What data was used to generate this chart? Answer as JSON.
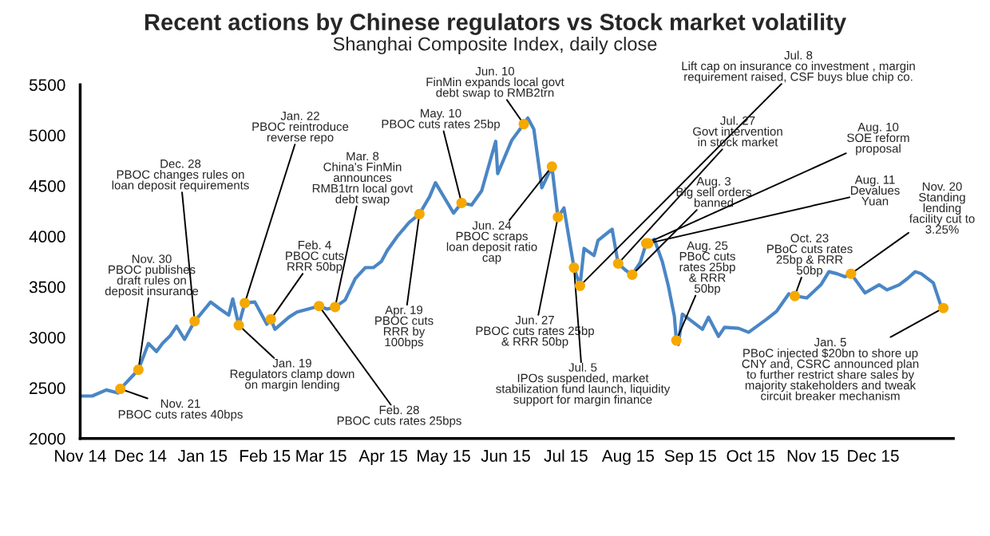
{
  "chart_data": {
    "type": "line",
    "title": "Recent actions by Chinese regulators vs Stock market volatility",
    "subtitle": "Shanghai Composite Index, daily close",
    "x": [
      "2014-11-01",
      "2014-11-07",
      "2014-11-14",
      "2014-11-20",
      "2014-11-21",
      "2014-11-30",
      "2014-12-05",
      "2014-12-09",
      "2014-12-12",
      "2014-12-16",
      "2014-12-19",
      "2014-12-23",
      "2014-12-28",
      "2014-12-31",
      "2015-01-05",
      "2015-01-09",
      "2015-01-14",
      "2015-01-16",
      "2015-01-19",
      "2015-01-22",
      "2015-01-27",
      "2015-02-02",
      "2015-02-04",
      "2015-02-06",
      "2015-02-13",
      "2015-02-17",
      "2015-02-28",
      "2015-03-04",
      "2015-03-08",
      "2015-03-13",
      "2015-03-18",
      "2015-03-23",
      "2015-03-27",
      "2015-03-31",
      "2015-04-03",
      "2015-04-08",
      "2015-04-14",
      "2015-04-19",
      "2015-04-24",
      "2015-04-27",
      "2015-05-06",
      "2015-05-10",
      "2015-05-15",
      "2015-05-20",
      "2015-05-27",
      "2015-05-28",
      "2015-06-04",
      "2015-06-10",
      "2015-06-12",
      "2015-06-15",
      "2015-06-19",
      "2015-06-24",
      "2015-06-27",
      "2015-06-30",
      "2015-07-05",
      "2015-07-08",
      "2015-07-10",
      "2015-07-15",
      "2015-07-17",
      "2015-07-24",
      "2015-07-27",
      "2015-07-31",
      "2015-08-03",
      "2015-08-07",
      "2015-08-10",
      "2015-08-11",
      "2015-08-14",
      "2015-08-18",
      "2015-08-21",
      "2015-08-24",
      "2015-08-25",
      "2015-08-26",
      "2015-08-28",
      "2015-09-01",
      "2015-09-07",
      "2015-09-10",
      "2015-09-15",
      "2015-09-18",
      "2015-09-25",
      "2015-09-30",
      "2015-10-09",
      "2015-10-14",
      "2015-10-20",
      "2015-10-23",
      "2015-10-29",
      "2015-11-05",
      "2015-11-09",
      "2015-11-13",
      "2015-11-17",
      "2015-11-20",
      "2015-11-27",
      "2015-12-04",
      "2015-12-08",
      "2015-12-14",
      "2015-12-18",
      "2015-12-22",
      "2015-12-25",
      "2015-12-31",
      "2016-01-04",
      "2016-01-05"
    ],
    "series": [
      {
        "color": "#4a86c5",
        "values": [
          2420,
          2420,
          2480,
          2450,
          2490,
          2680,
          2940,
          2860,
          2940,
          3020,
          3110,
          2980,
          3160,
          3230,
          3350,
          3290,
          3220,
          3380,
          3120,
          3340,
          3350,
          3130,
          3180,
          3080,
          3200,
          3250,
          3310,
          3280,
          3300,
          3370,
          3580,
          3690,
          3690,
          3750,
          3860,
          4000,
          4140,
          4220,
          4390,
          4530,
          4230,
          4330,
          4310,
          4450,
          4940,
          4620,
          4950,
          5110,
          5170,
          5060,
          4480,
          4690,
          4190,
          4280,
          3690,
          3510,
          3880,
          3810,
          3960,
          4070,
          3730,
          3660,
          3620,
          3740,
          3930,
          3930,
          3970,
          3750,
          3510,
          3210,
          2970,
          2930,
          3230,
          3170,
          3080,
          3200,
          3010,
          3100,
          3090,
          3050,
          3180,
          3260,
          3430,
          3410,
          3390,
          3520,
          3650,
          3630,
          3600,
          3630,
          3440,
          3520,
          3470,
          3520,
          3580,
          3650,
          3630,
          3540,
          3300,
          3290
        ]
      },
      {
        "type": "scatter",
        "color": "#f5a800",
        "x": [
          "2014-11-21",
          "2014-11-30",
          "2014-12-28",
          "2015-01-19",
          "2015-01-22",
          "2015-02-04",
          "2015-02-28",
          "2015-03-08",
          "2015-04-19",
          "2015-05-10",
          "2015-06-10",
          "2015-06-24",
          "2015-06-27",
          "2015-07-05",
          "2015-07-08",
          "2015-07-27",
          "2015-08-03",
          "2015-08-10",
          "2015-08-11",
          "2015-08-25",
          "2015-10-23",
          "2015-11-20",
          "2016-01-05"
        ],
        "values": [
          2490,
          2680,
          3160,
          3120,
          3340,
          3180,
          3310,
          3300,
          4220,
          4330,
          5110,
          4690,
          4190,
          3690,
          3510,
          3730,
          3620,
          3930,
          3930,
          2970,
          3410,
          3630,
          3290
        ]
      }
    ],
    "xlim": [
      "2014-11-01",
      "2016-01-10"
    ],
    "xticks": [
      {
        "value": "2014-11-01",
        "label": "Nov 14"
      },
      {
        "value": "2014-12-01",
        "label": "Dec 14"
      },
      {
        "value": "2015-01-01",
        "label": "Jan 15"
      },
      {
        "value": "2015-02-01",
        "label": "Feb 15"
      },
      {
        "value": "2015-03-01",
        "label": "Mar 15"
      },
      {
        "value": "2015-04-01",
        "label": "Apr 15"
      },
      {
        "value": "2015-05-01",
        "label": "May 15"
      },
      {
        "value": "2015-06-01",
        "label": "Jun 15"
      },
      {
        "value": "2015-07-01",
        "label": "Jul 15"
      },
      {
        "value": "2015-08-01",
        "label": "Aug 15"
      },
      {
        "value": "2015-09-01",
        "label": "Sep 15"
      },
      {
        "value": "2015-10-01",
        "label": "Oct 15"
      },
      {
        "value": "2015-11-01",
        "label": "Nov 15"
      },
      {
        "value": "2015-12-01",
        "label": "Dec 15"
      }
    ],
    "ylim": [
      2000,
      5500
    ],
    "yticks": [
      2000,
      2500,
      3000,
      3500,
      4000,
      4500,
      5000,
      5500
    ],
    "grid": false,
    "annotations": [
      {
        "text": "Nov. 21\nPBOC cuts rates 40bps",
        "x": "2014-11-21",
        "y": 2490
      },
      {
        "text": "Nov. 30\nPBOC publishes\ndraft rules on\ndeposit insurance",
        "x": "2014-11-30",
        "y": 2680
      },
      {
        "text": "Dec. 28\nPBOC changes rules on\nloan deposit requirements",
        "x": "2014-12-28",
        "y": 3160
      },
      {
        "text": "Jan. 19\nRegulators clamp down\non margin lending",
        "x": "2015-01-19",
        "y": 3120
      },
      {
        "text": "Jan. 22\nPBOC reintroduce\nreverse repo",
        "x": "2015-01-22",
        "y": 3340
      },
      {
        "text": "Feb. 4\nPBOC cuts\nRRR 50bp",
        "x": "2015-02-04",
        "y": 3180
      },
      {
        "text": "Feb. 28\nPBOC cuts rates 25bps",
        "x": "2015-02-28",
        "y": 3310
      },
      {
        "text": "Mar. 8\nChina's FinMin\nannounces\nRMB1trn local govt\ndebt swap",
        "x": "2015-03-08",
        "y": 3300
      },
      {
        "text": "Apr. 19\nPBOC cuts\nRRR by\n100bps",
        "x": "2015-04-19",
        "y": 4220
      },
      {
        "text": "May. 10\nPBOC cuts rates 25bp",
        "x": "2015-05-10",
        "y": 4330
      },
      {
        "text": "Jun. 10\nFinMin expands local govt\ndebt swap to RMB2trn",
        "x": "2015-06-10",
        "y": 5110
      },
      {
        "text": "Jun. 24\nPBOC scraps\nloan deposit ratio\ncap",
        "x": "2015-06-24",
        "y": 4690
      },
      {
        "text": "Jun. 27\nPBOC cuts rates 25bp\n& RRR 50bp",
        "x": "2015-06-27",
        "y": 4190
      },
      {
        "text": "Jul. 5\nIPOs suspended, market\nstabilization fund launch, liquidity\nsupport for margin finance",
        "x": "2015-07-05",
        "y": 3690
      },
      {
        "text": "Jul. 8\nLift cap on insurance co investment , margin\nrequirement raised, CSF buys blue chip co.",
        "x": "2015-07-08",
        "y": 3510
      },
      {
        "text": "Jul. 27\nGovt intervention\nin stock market",
        "x": "2015-07-27",
        "y": 3730
      },
      {
        "text": "Aug. 3\nBig sell orders\nbanned",
        "x": "2015-08-03",
        "y": 3620
      },
      {
        "text": "Aug. 10\nSOE reform\nproposal",
        "x": "2015-08-10",
        "y": 3930
      },
      {
        "text": "Aug. 11\nDevalues\nYuan",
        "x": "2015-08-11",
        "y": 3930
      },
      {
        "text": "Aug. 25\nPBoC cuts\nrates 25bp\n& RRR\n50bp",
        "x": "2015-08-25",
        "y": 2970
      },
      {
        "text": "Oct. 23\nPBoC cuts rates\n25bp & RRR\n50bp",
        "x": "2015-10-23",
        "y": 3410
      },
      {
        "text": "Nov. 20\nStanding\nlending\nfacility cut to\n3.25%",
        "x": "2015-11-20",
        "y": 3630
      },
      {
        "text": "Jan. 5\nPBoC injected $20bn to shore up\nCNY and, CSRC announced plan\nto further restrict share sales by\nmajority stakeholders and tweak\ncircuit breaker mechanism",
        "x": "2016-01-05",
        "y": 3290
      }
    ]
  }
}
